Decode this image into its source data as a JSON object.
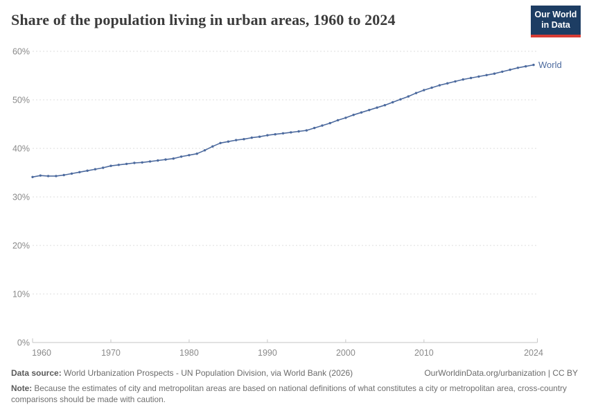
{
  "header": {
    "title": "Share of the population living in urban areas, 1960 to 2024",
    "logo": {
      "line1": "Our World",
      "line2": "in Data"
    }
  },
  "chart_data": {
    "type": "line",
    "title": "Share of the population living in urban areas, 1960 to 2024",
    "xlabel": "",
    "ylabel": "",
    "xlim": [
      1960,
      2024
    ],
    "ylim": [
      0,
      60
    ],
    "x_ticks": [
      1960,
      1970,
      1980,
      1990,
      2000,
      2010,
      2024
    ],
    "y_ticks": [
      0,
      10,
      20,
      30,
      40,
      50,
      60
    ],
    "y_tick_suffix": "%",
    "grid": "dashed-horizontal",
    "legend_position": "end-of-line-label",
    "series": [
      {
        "name": "World",
        "color": "#4c6a9e",
        "years": [
          1960,
          1961,
          1962,
          1963,
          1964,
          1965,
          1966,
          1967,
          1968,
          1969,
          1970,
          1971,
          1972,
          1973,
          1974,
          1975,
          1976,
          1977,
          1978,
          1979,
          1980,
          1981,
          1982,
          1983,
          1984,
          1985,
          1986,
          1987,
          1988,
          1989,
          1990,
          1991,
          1992,
          1993,
          1994,
          1995,
          1996,
          1997,
          1998,
          1999,
          2000,
          2001,
          2002,
          2003,
          2004,
          2005,
          2006,
          2007,
          2008,
          2009,
          2010,
          2011,
          2012,
          2013,
          2014,
          2015,
          2016,
          2017,
          2018,
          2019,
          2020,
          2021,
          2022,
          2023,
          2024
        ],
        "values": [
          34.1,
          34.4,
          34.3,
          34.3,
          34.5,
          34.8,
          35.1,
          35.4,
          35.7,
          36.0,
          36.4,
          36.6,
          36.8,
          37.0,
          37.1,
          37.3,
          37.5,
          37.7,
          37.9,
          38.3,
          38.6,
          38.9,
          39.6,
          40.4,
          41.1,
          41.4,
          41.7,
          41.9,
          42.2,
          42.4,
          42.7,
          42.9,
          43.1,
          43.3,
          43.5,
          43.7,
          44.2,
          44.7,
          45.2,
          45.8,
          46.3,
          46.9,
          47.4,
          47.9,
          48.4,
          48.9,
          49.5,
          50.1,
          50.7,
          51.4,
          52.0,
          52.5,
          53.0,
          53.4,
          53.8,
          54.2,
          54.5,
          54.8,
          55.1,
          55.4,
          55.8,
          56.2,
          56.6,
          56.9,
          57.2
        ]
      }
    ]
  },
  "footer": {
    "source_label": "Data source:",
    "source_text": " World Urbanization Prospects - UN Population Division, via World Bank (2026)",
    "link_text": "OurWorldinData.org/urbanization | CC BY",
    "note_label": "Note:",
    "note_text": " Because the estimates of city and metropolitan areas are based on national definitions of what constitutes a city or metropolitan area, cross-country comparisons should be made with caution."
  },
  "colors": {
    "line": "#4c6a9e",
    "grid": "#dcdcdc",
    "axis": "#c6c6c6",
    "tick_label": "#8a8a8a",
    "title": "#3b3b3b",
    "logo_bg": "#1d3d63",
    "logo_red": "#d73c34",
    "footer_text": "#6b6b6b"
  }
}
